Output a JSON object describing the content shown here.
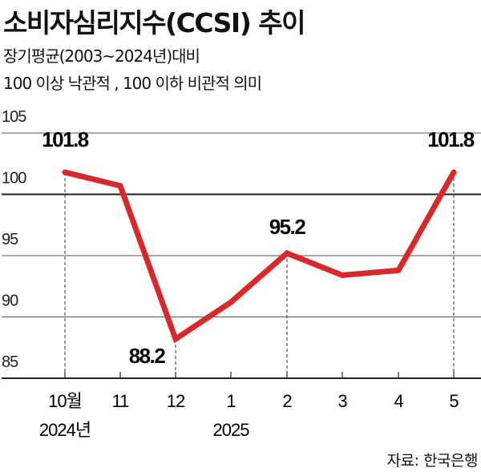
{
  "chart_data": {
    "type": "line",
    "title": "소비자심리지수(CCSI) 추이",
    "subtitle": [
      "장기평균(2003~2024년)대비",
      "100 이상 낙관적 , 100 이하 비관적 의미"
    ],
    "categories": [
      "10월",
      "11",
      "12",
      "1",
      "2",
      "3",
      "4",
      "5"
    ],
    "year_labels": {
      "0": "2024년",
      "3": "2025"
    },
    "values": [
      101.8,
      100.7,
      88.2,
      91.2,
      95.2,
      93.4,
      93.8,
      101.8
    ],
    "labeled_points": [
      0,
      2,
      4,
      7
    ],
    "yticks": [
      105,
      100,
      95,
      90,
      85
    ],
    "ylim": [
      85,
      105
    ],
    "reference_line": 100,
    "line_color": "#d9272a",
    "grid": true
  },
  "source": "자료: 한국은행"
}
